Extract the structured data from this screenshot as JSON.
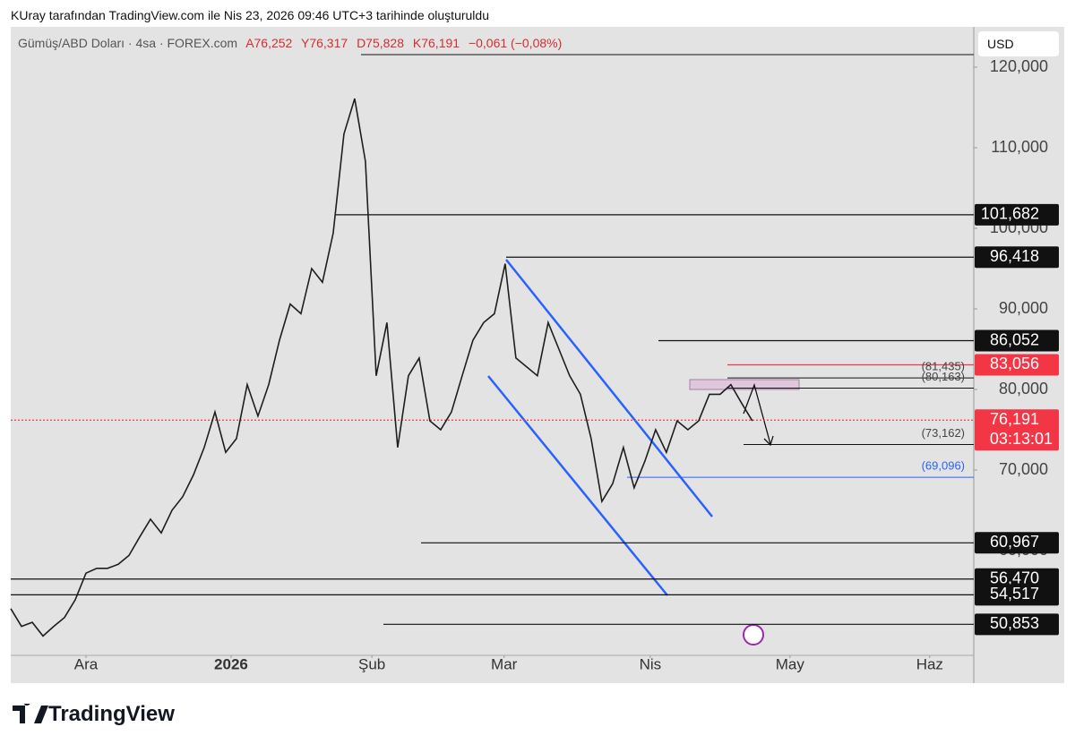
{
  "header": {
    "credit": "KUray tarafından TradingView.com ile Nis 23, 2026 09:46 UTC+3 tarihinde oluşturuldu",
    "symbol": "Gümüş/ABD Doları · 4sa · FOREX.com",
    "ohlc": [
      "A76,252",
      "Y76,317",
      "D75,828",
      "K76,191"
    ],
    "change": "−0,061 (−0,08%)",
    "currency": "USD"
  },
  "footer": "TradingView",
  "chart_data": {
    "type": "line",
    "color": "#1e1e1e",
    "categories": [
      null,
      null,
      null,
      null,
      null,
      null,
      null,
      null,
      null,
      null,
      null,
      null,
      null,
      null,
      null,
      null,
      null,
      null,
      null,
      null,
      null,
      null,
      null,
      null,
      null,
      null,
      null,
      null,
      null,
      null,
      null,
      null,
      null,
      null,
      null,
      null,
      null,
      null,
      null,
      null,
      null,
      null,
      null,
      null,
      null,
      null,
      null,
      null,
      null,
      null,
      null,
      null,
      null,
      null,
      null,
      null,
      null,
      null,
      null,
      null,
      null,
      null,
      null,
      null,
      null,
      null,
      null,
      null,
      null,
      null
    ],
    "values": [
      52.8,
      50.6,
      51.1,
      49.4,
      50.6,
      51.7,
      53.9,
      57.2,
      57.8,
      57.8,
      58.3,
      59.4,
      61.7,
      63.9,
      62.2,
      65,
      66.7,
      69.4,
      72.8,
      77.2,
      72.2,
      73.9,
      80.6,
      76.7,
      80.6,
      86.1,
      90.6,
      89.4,
      95,
      93.3,
      99.4,
      111.7,
      116.1,
      108.3,
      81.7,
      88.3,
      72.8,
      81.7,
      83.9,
      76.1,
      75,
      77.2,
      81.7,
      86.1,
      88.3,
      89.4,
      95.6,
      83.9,
      82.8,
      81.7,
      88.3,
      85,
      81.7,
      79.4,
      73.9,
      66.1,
      68.3,
      72.8,
      67.8,
      71.1,
      75,
      72.2,
      76.1,
      75,
      76.1,
      79.4,
      79.4,
      80.6,
      78.3,
      76.1
    ],
    "xlim": [
      0,
      89.6
    ],
    "xticks": [
      {
        "value": 7,
        "label": "Ara"
      },
      {
        "value": 20.5,
        "label": "2026"
      },
      {
        "value": 33.6,
        "label": "Şub"
      },
      {
        "value": 45.9,
        "label": "Mar"
      },
      {
        "value": 59.5,
        "label": "Nis"
      },
      {
        "value": 72.5,
        "label": "May"
      },
      {
        "value": 85.5,
        "label": "Haz"
      }
    ],
    "ylim": [
      47,
      125
    ],
    "yticks": [
      {
        "value": 120,
        "label": "120,000"
      },
      {
        "value": 110,
        "label": "110,000"
      },
      {
        "value": 100,
        "label": "100,000"
      },
      {
        "value": 90,
        "label": "90,000"
      },
      {
        "value": 80,
        "label": "80,000"
      },
      {
        "value": 70,
        "label": "70,000"
      },
      {
        "value": 60,
        "label": "60,000"
      }
    ],
    "grid": false,
    "levels": [
      {
        "value": 101.682,
        "label": "101,682"
      },
      {
        "value": 96.418,
        "label": "96,418"
      },
      {
        "value": 86.052,
        "label": "86,052"
      },
      {
        "value": 83.056,
        "label": "83,056",
        "color": "#f23645"
      },
      {
        "value": 76.191,
        "label": "76,191",
        "color": "#f23645",
        "countdown": "03:13:01"
      },
      {
        "value": 60.967,
        "label": "60,967"
      },
      {
        "value": 56.47,
        "label": "56,470"
      },
      {
        "value": 54.517,
        "label": "54,517"
      },
      {
        "value": 50.853,
        "label": "50,853"
      }
    ],
    "annotations": [
      {
        "value": 81.435,
        "label": "(81,435)"
      },
      {
        "value": 80.163,
        "label": "(80,163)"
      },
      {
        "value": 73.162,
        "label": "(73,162)"
      },
      {
        "value": 69.096,
        "label": "(69,096)",
        "color": "#2962ff"
      }
    ]
  }
}
